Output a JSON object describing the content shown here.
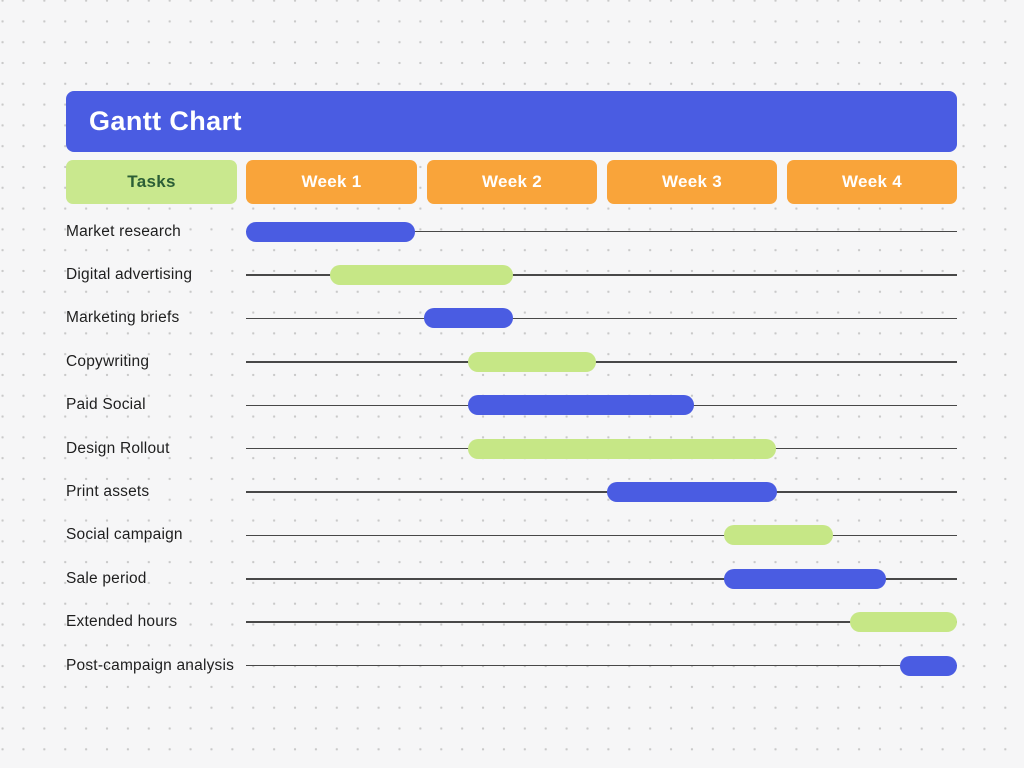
{
  "title": "Gantt Chart",
  "headers": {
    "tasks": "Tasks",
    "weeks": [
      "Week 1",
      "Week 2",
      "Week 3",
      "Week 4"
    ]
  },
  "colors": {
    "title_bar_bg": "#4a5ce2",
    "title_text": "#ffffff",
    "week_header_bg": "#f9a43a",
    "week_header_text": "#ffffff",
    "tasks_header_bg": "#c9e88e",
    "tasks_header_text": "#2b5e36",
    "bar_blue": "#4a5ce2",
    "bar_green": "#c6e786",
    "timeline_line": "#484848",
    "task_label_text": "#1e1e1e",
    "background": "#f6f6f7",
    "dot": "#c9c9c9"
  },
  "chart_data": {
    "type": "bar",
    "subtype": "gantt-timeline",
    "title": "Gantt Chart",
    "x_axis": {
      "labels": [
        "Week 1",
        "Week 2",
        "Week 3",
        "Week 4"
      ],
      "range_weeks": [
        0,
        4
      ],
      "grid": false
    },
    "legend": "none",
    "tasks": [
      {
        "label": "Market research",
        "start_week": 0.0,
        "end_week": 0.95,
        "color": "blue"
      },
      {
        "label": "Digital advertising",
        "start_week": 0.47,
        "end_week": 1.5,
        "color": "green"
      },
      {
        "label": "Marketing briefs",
        "start_week": 1.0,
        "end_week": 1.5,
        "color": "blue"
      },
      {
        "label": "Copywriting",
        "start_week": 1.25,
        "end_week": 1.97,
        "color": "green"
      },
      {
        "label": "Paid Social",
        "start_week": 1.25,
        "end_week": 2.52,
        "color": "blue"
      },
      {
        "label": "Design Rollout",
        "start_week": 1.25,
        "end_week": 2.98,
        "color": "green"
      },
      {
        "label": "Print assets",
        "start_week": 2.03,
        "end_week": 2.99,
        "color": "blue"
      },
      {
        "label": "Social campaign",
        "start_week": 2.69,
        "end_week": 3.3,
        "color": "green"
      },
      {
        "label": "Sale period",
        "start_week": 2.69,
        "end_week": 3.6,
        "color": "blue"
      },
      {
        "label": "Extended hours",
        "start_week": 3.4,
        "end_week": 4.0,
        "color": "green"
      },
      {
        "label": "Post-campaign analysis",
        "start_week": 3.68,
        "end_week": 4.0,
        "color": "blue"
      }
    ]
  }
}
